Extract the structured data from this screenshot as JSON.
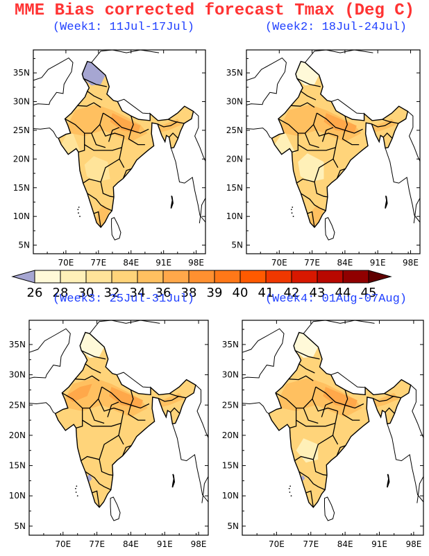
{
  "title": "MME Bias corrected forecast Tmax (Deg C)",
  "panels": [
    {
      "label": "(Week1: 11Jul-17Jul)"
    },
    {
      "label": "(Week2: 18Jul-24Jul)"
    },
    {
      "label": "(Week3: 25Jul-31Jul)"
    },
    {
      "label": "(Week4: 01Aug-07Aug)"
    }
  ],
  "axes": {
    "lon_ticks": [
      "70E",
      "77E",
      "84E",
      "91E",
      "98E"
    ],
    "lat_ticks": [
      "35N",
      "30N",
      "25N",
      "20N",
      "15N",
      "10N",
      "5N"
    ]
  },
  "colorbar": {
    "levels": [
      "26",
      "28",
      "30",
      "32",
      "34",
      "36",
      "38",
      "39",
      "40",
      "41",
      "42",
      "43",
      "44",
      "45"
    ],
    "colors": [
      "#a6a6d2",
      "#fff9d8",
      "#fff0b8",
      "#ffe49a",
      "#ffd47a",
      "#ffc060",
      "#ffa84a",
      "#ff9030",
      "#ff7818",
      "#ff5a00",
      "#f03800",
      "#d81800",
      "#b80800",
      "#900000",
      "#600000"
    ]
  }
}
